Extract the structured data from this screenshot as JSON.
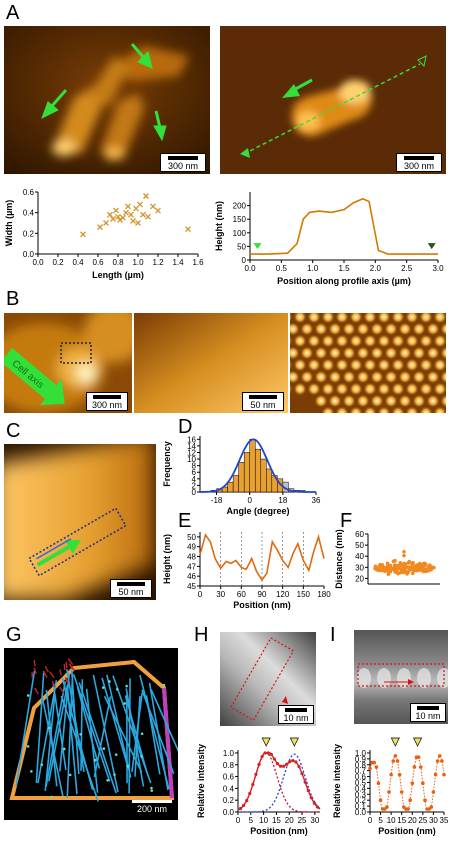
{
  "panels": {
    "A": "A",
    "B": "B",
    "C": "C",
    "D": "D",
    "E": "E",
    "F": "F",
    "G": "G",
    "H": "H",
    "I": "I"
  },
  "scalebars": {
    "A1": "300 nm",
    "A2": "300 nm",
    "B1": "300 nm",
    "B2": "50 nm",
    "C": "50 nm",
    "G": "200 nm",
    "H": "10 nm",
    "I": "10 nm"
  },
  "annotations": {
    "cell_axis": "Cell axis"
  },
  "colors": {
    "afm_dark": "#2a1400",
    "afm_mid": "#b8660a",
    "afm_light": "#ffd070",
    "arrow_green": "#33e03a",
    "scatter_orange": "#d4952a",
    "line_orange": "#d27a00",
    "profile_red": "#e85a18",
    "fit_blue": "#2244cc",
    "fit_red": "#cc1133",
    "g_blue": "#2aa8e0",
    "g_orange": "#f0a040",
    "g_red": "#cc2222",
    "g_purple": "#c040c0"
  },
  "chart_data": [
    {
      "id": "A-scatter",
      "type": "scatter",
      "xlabel": "Length (µm)",
      "ylabel": "Width (µm)",
      "xlim": [
        0.0,
        1.6
      ],
      "ylim": [
        0.0,
        0.6
      ],
      "xticks": [
        "0.0",
        "0.2",
        "0.4",
        "0.6",
        "0.8",
        "1.0",
        "1.2",
        "1.4",
        "1.6"
      ],
      "yticks": [
        "0.0",
        "0.2",
        "0.4",
        "0.6"
      ],
      "x": [
        0.45,
        0.62,
        0.68,
        0.72,
        0.75,
        0.78,
        0.8,
        0.82,
        0.85,
        0.88,
        0.9,
        0.93,
        0.95,
        0.98,
        1.0,
        1.02,
        1.05,
        1.08,
        1.1,
        1.15,
        1.2,
        1.5
      ],
      "y": [
        0.19,
        0.26,
        0.3,
        0.38,
        0.34,
        0.42,
        0.36,
        0.33,
        0.35,
        0.4,
        0.46,
        0.38,
        0.32,
        0.44,
        0.3,
        0.48,
        0.38,
        0.56,
        0.36,
        0.46,
        0.42,
        0.24
      ]
    },
    {
      "id": "A-profile",
      "type": "line",
      "xlabel": "Position along profile axis (µm)",
      "ylabel": "Height (nm)",
      "xlim": [
        0.0,
        3.0
      ],
      "ylim": [
        0,
        250
      ],
      "xticks": [
        "0.0",
        "0.5",
        "1.0",
        "1.5",
        "2.0",
        "2.5",
        "3.0"
      ],
      "yticks": [
        "0",
        "50",
        "100",
        "150",
        "200"
      ],
      "x": [
        0.0,
        0.3,
        0.6,
        0.75,
        0.85,
        0.95,
        1.1,
        1.3,
        1.5,
        1.65,
        1.8,
        1.9,
        1.97,
        2.05,
        2.2,
        2.6,
        3.0
      ],
      "y": [
        22,
        22,
        25,
        60,
        150,
        175,
        180,
        175,
        185,
        210,
        225,
        215,
        130,
        35,
        22,
        22,
        22
      ]
    },
    {
      "id": "D",
      "type": "bar",
      "xlabel": "Angle (degree)",
      "ylabel": "Frequency",
      "xlim": [
        -27,
        36
      ],
      "ylim": [
        0,
        17
      ],
      "xticks": [
        "-18",
        "0",
        "18",
        "36"
      ],
      "yticks": [
        "0",
        "2",
        "4",
        "6",
        "8",
        "10",
        "12",
        "14",
        "16"
      ],
      "bin_centers": [
        -19.5,
        -16.5,
        -13.5,
        -10.5,
        -7.5,
        -4.5,
        -1.5,
        1.5,
        4.5,
        7.5,
        10.5,
        13.5,
        16.5,
        19.5,
        22.5,
        25.5,
        28.5
      ],
      "values": [
        0.5,
        1,
        1.5,
        3,
        5,
        9,
        12,
        16,
        13,
        10,
        7,
        5,
        4,
        3,
        1,
        0.5,
        0.5
      ]
    },
    {
      "id": "E",
      "type": "line",
      "xlabel": "Position (nm)",
      "ylabel": "Height (nm)",
      "xlim": [
        0,
        180
      ],
      "ylim": [
        45,
        50.5
      ],
      "xticks": [
        "0",
        "30",
        "60",
        "90",
        "120",
        "150",
        "180"
      ],
      "yticks": [
        "45",
        "46",
        "47",
        "48",
        "49",
        "50"
      ],
      "x": [
        0,
        8,
        15,
        22,
        30,
        38,
        45,
        52,
        60,
        67,
        75,
        82,
        90,
        97,
        105,
        112,
        120,
        128,
        135,
        142,
        150,
        158,
        165,
        172,
        180
      ],
      "y": [
        48.2,
        50.2,
        49.5,
        47.8,
        46.8,
        47.5,
        47.3,
        47.6,
        46.9,
        46.7,
        47.8,
        46.5,
        45.6,
        46.3,
        49.5,
        48.7,
        47.6,
        46.9,
        48.3,
        49.3,
        47.6,
        46.6,
        48.5,
        50.0,
        47.8
      ]
    },
    {
      "id": "F",
      "type": "scatter",
      "ylabel": "Distance (nm)",
      "xlabel": "",
      "ylim": [
        15,
        60
      ],
      "yticks": [
        "20",
        "30",
        "40",
        "50",
        "60"
      ]
    },
    {
      "id": "H",
      "type": "line",
      "xlabel": "Position (nm)",
      "ylabel": "Relative intensity",
      "xlim": [
        0,
        32
      ],
      "ylim": [
        0,
        1.05
      ],
      "xticks": [
        "0",
        "5",
        "10",
        "15",
        "20",
        "25",
        "30"
      ],
      "yticks": [
        "0.0",
        "0.2",
        "0.4",
        "0.6",
        "0.8",
        "1.0"
      ]
    },
    {
      "id": "I",
      "type": "line",
      "xlabel": "Position (nm)",
      "ylabel": "Relative intensity",
      "xlim": [
        0,
        35
      ],
      "ylim": [
        0,
        1.05
      ],
      "xticks": [
        "0",
        "5",
        "10",
        "15",
        "20",
        "25",
        "30",
        "35"
      ],
      "yticks": [
        "0.0",
        "0.1",
        "0.2",
        "0.3",
        "0.4",
        "0.5",
        "0.6",
        "0.7",
        "0.8",
        "0.9",
        "1.0"
      ]
    }
  ]
}
